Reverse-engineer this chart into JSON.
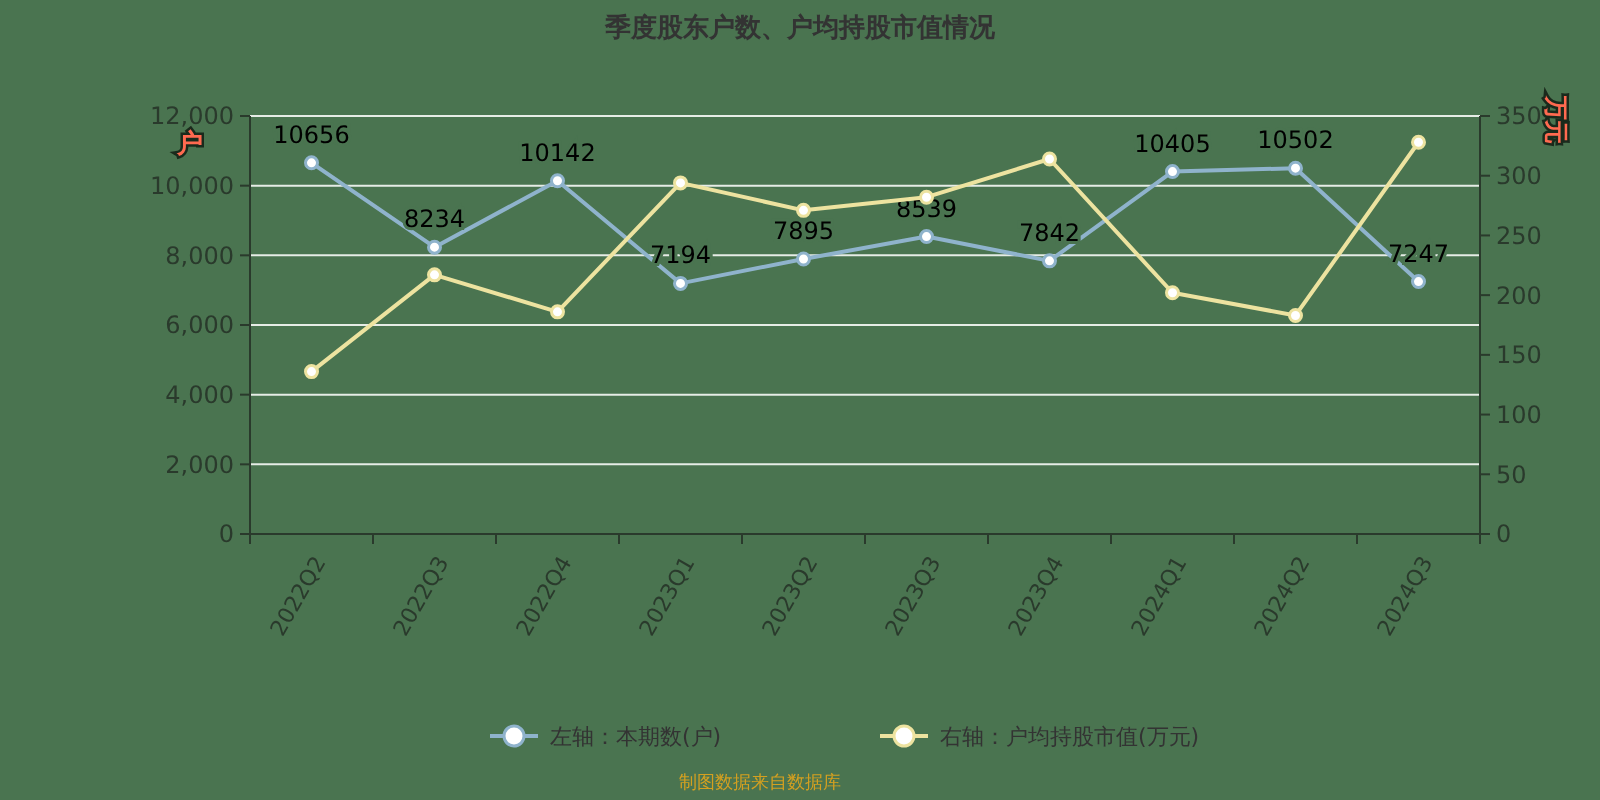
{
  "chart_data": {
    "type": "line",
    "title": "季度股东户数、户均持股市值情况",
    "ylabel": "户",
    "y2label": "万元",
    "categories": [
      "2022Q2",
      "2022Q3",
      "2022Q4",
      "2023Q1",
      "2023Q2",
      "2023Q3",
      "2023Q4",
      "2024Q1",
      "2024Q2",
      "2024Q3"
    ],
    "series": [
      {
        "name": "左轴：本期数(户)",
        "color": "#8fb3cc",
        "values": [
          10656,
          8234,
          10142,
          7194,
          7895,
          8539,
          7842,
          10405,
          10502,
          7247
        ],
        "value_labels": [
          "10656",
          "8234",
          "10142",
          "7194",
          "7895",
          "8539",
          "7842",
          "10405",
          "10502",
          "7247"
        ]
      },
      {
        "name": "右轴：户均持股市值(万元)",
        "color": "#ede3a0",
        "axis": "y2",
        "values": [
          136,
          217,
          186,
          294,
          271,
          282,
          314,
          202,
          183,
          328
        ]
      }
    ],
    "ylim": [
      0,
      12000
    ],
    "yticks": [
      {
        "value": 0,
        "label": "0"
      },
      {
        "value": 2000,
        "label": "2,000"
      },
      {
        "value": 4000,
        "label": "4,000"
      },
      {
        "value": 6000,
        "label": "6,000"
      },
      {
        "value": 8000,
        "label": "8,000"
      },
      {
        "value": 10000,
        "label": "10,000"
      },
      {
        "value": 12000,
        "label": "12,000"
      }
    ],
    "y2lim": [
      0,
      350
    ],
    "y2ticks": [
      0,
      50,
      100,
      150,
      200,
      250,
      300,
      350
    ],
    "grid": "y",
    "legend": "bottom",
    "marker": "circle",
    "annotations": [
      "制图数据来自数据库"
    ]
  }
}
